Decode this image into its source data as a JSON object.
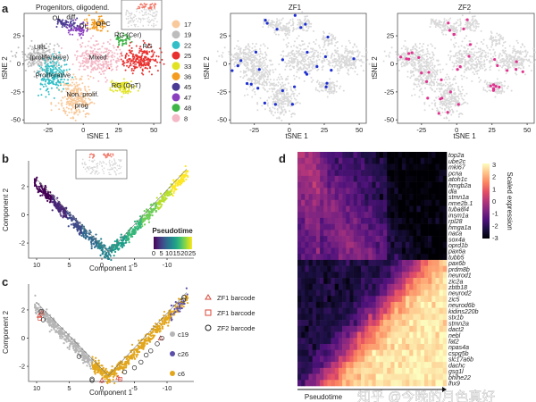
{
  "panel_labels": {
    "a": "a",
    "b": "b",
    "c": "c",
    "d": "d"
  },
  "panel_a": {
    "title": "Progenitors, oligodend.",
    "xlabel": "tSNE 1",
    "ylabel": "tSNE 2",
    "xticks": [
      -25,
      0,
      25,
      50
    ],
    "yticks": [
      25,
      0,
      -25,
      -50
    ],
    "clusters": [
      {
        "id": "17",
        "color": "#f8c99a"
      },
      {
        "id": "19",
        "color": "#bdbdbd"
      },
      {
        "id": "22",
        "color": "#33bfc7"
      },
      {
        "id": "25",
        "color": "#e8312f"
      },
      {
        "id": "33",
        "color": "#e1e322"
      },
      {
        "id": "36",
        "color": "#f39c1f"
      },
      {
        "id": "45",
        "color": "#4b3a93"
      },
      {
        "id": "47",
        "color": "#8a3fbf"
      },
      {
        "id": "48",
        "color": "#3fb548"
      },
      {
        "id": "8",
        "color": "#f4b8c6"
      }
    ],
    "annotations": [
      "OL",
      "diff",
      "OL",
      "OPC",
      "RG (Cer)",
      "RG",
      "URL",
      "(proliferative)",
      "Mixed",
      "Proliferative",
      "Non. prolif.",
      "prog",
      "RG (OpT)"
    ]
  },
  "panel_zf1": {
    "title": "ZF1",
    "xlabel": "tSNE 1",
    "ylabel": "tSNE 2",
    "xticks": [
      -25,
      0,
      25,
      50
    ],
    "highlight_color": "#1d2fd0"
  },
  "panel_zf2": {
    "title": "ZF2",
    "xlabel": "tSNE 1",
    "ylabel": "tSNE 2",
    "xticks": [
      -25,
      0,
      25,
      50
    ],
    "highlight_color": "#e0338f"
  },
  "panel_b": {
    "xlabel": "Component 1",
    "ylabel": "Component 2",
    "xticks": [
      10,
      5,
      0,
      -5,
      -10
    ],
    "yticks": [
      2,
      0,
      -2
    ],
    "colorbar_title": "Pseudotime",
    "colorbar_ticks": [
      0,
      5,
      10,
      15,
      20,
      25
    ]
  },
  "panel_c": {
    "xlabel": "Component 1",
    "ylabel": "Component 2",
    "xticks": [
      10,
      5,
      0,
      -5,
      -10
    ],
    "yticks": [
      2,
      0,
      -2
    ],
    "clusters": [
      {
        "name": "c19",
        "color": "#b5b5b5"
      },
      {
        "name": "c26",
        "color": "#5a4fa8"
      },
      {
        "name": "c6",
        "color": "#e2a61c"
      }
    ],
    "barcodes": [
      {
        "name": "ZF1 barcode",
        "marker": "triangle",
        "color": "#d9473a"
      },
      {
        "name": "ZF1 barcode",
        "marker": "square",
        "color": "#d9473a"
      },
      {
        "name": "ZF2 barcode",
        "marker": "circle",
        "color": "#222222"
      }
    ]
  },
  "panel_d": {
    "xlabel": "Pseudotime",
    "colorbar_title": "Scaled expression",
    "colorbar_ticks": [
      3,
      2,
      1,
      0,
      -1,
      -2,
      -3
    ],
    "highlight_gene_color": "#5c5ca8",
    "genes": [
      {
        "name": "top2a",
        "tf": false
      },
      {
        "name": "ube2c",
        "tf": false
      },
      {
        "name": "mki67",
        "tf": false
      },
      {
        "name": "pcna",
        "tf": false
      },
      {
        "name": "atoh1c",
        "tf": true
      },
      {
        "name": "hmgb2a",
        "tf": false
      },
      {
        "name": "dla",
        "tf": false
      },
      {
        "name": "stmn1a",
        "tf": false
      },
      {
        "name": "nme2b.1",
        "tf": false
      },
      {
        "name": "tuba8l4",
        "tf": false
      },
      {
        "name": "insm1a",
        "tf": true
      },
      {
        "name": "rpl28",
        "tf": false
      },
      {
        "name": "hmga1a",
        "tf": false
      },
      {
        "name": "naca",
        "tf": false
      },
      {
        "name": "sox4a",
        "tf": true
      },
      {
        "name": "oprd1b",
        "tf": false
      },
      {
        "name": "pax6a",
        "tf": true
      },
      {
        "name": "tubb5",
        "tf": false
      },
      {
        "name": "pax6b",
        "tf": true
      },
      {
        "name": "prdm8b",
        "tf": false
      },
      {
        "name": "neurod1",
        "tf": true
      },
      {
        "name": "zic2a",
        "tf": true
      },
      {
        "name": "zbtb18",
        "tf": false
      },
      {
        "name": "neurod2",
        "tf": false
      },
      {
        "name": "zic5",
        "tf": true
      },
      {
        "name": "neurod6b",
        "tf": false
      },
      {
        "name": "kidins220b",
        "tf": false
      },
      {
        "name": "stx1b",
        "tf": false
      },
      {
        "name": "stmn2a",
        "tf": false
      },
      {
        "name": "dact2",
        "tf": false
      },
      {
        "name": "nebl",
        "tf": false
      },
      {
        "name": "fat2",
        "tf": false
      },
      {
        "name": "npas4a",
        "tf": false
      },
      {
        "name": "cspg5b",
        "tf": false
      },
      {
        "name": "slc17a6b",
        "tf": false
      },
      {
        "name": "dachc",
        "tf": false
      },
      {
        "name": "gsg1l",
        "tf": false
      },
      {
        "name": "bhlhe22",
        "tf": true
      },
      {
        "name": "lhx9",
        "tf": false
      }
    ]
  },
  "watermark": "知乎 @今晚的月色真好"
}
